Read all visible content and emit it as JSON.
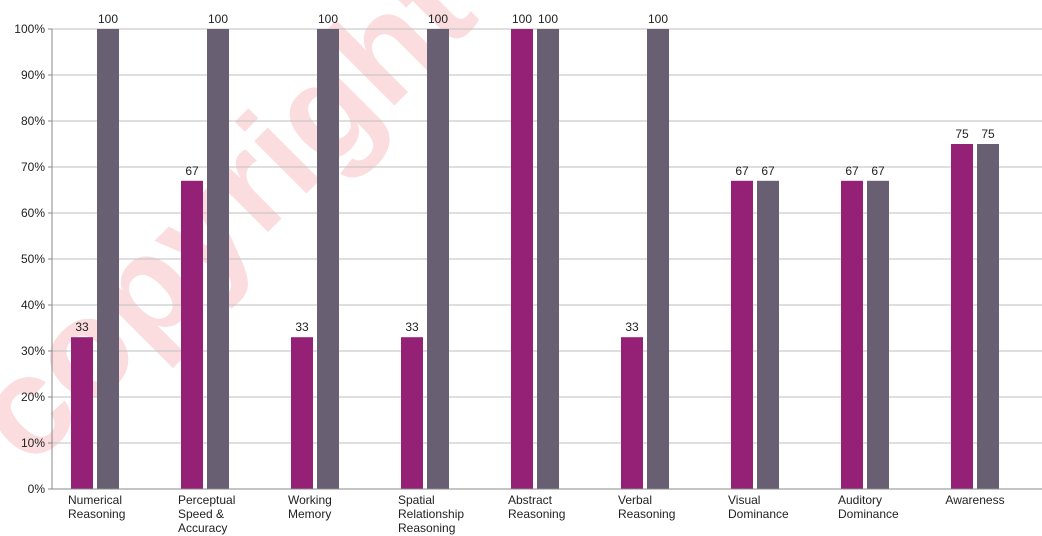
{
  "watermark": "copyright",
  "colors": {
    "series1": "#952177",
    "series2": "#686072",
    "grid": "#bfbfbf",
    "axis": "#888888"
  },
  "chart_data": {
    "type": "bar",
    "categories": [
      [
        "Numerical",
        "Reasoning"
      ],
      [
        "Perceptual",
        "Speed &",
        "Accuracy"
      ],
      [
        "Working",
        "Memory"
      ],
      [
        "Spatial",
        "Relationship",
        "Reasoning"
      ],
      [
        "Abstract",
        "Reasoning"
      ],
      [
        "Verbal",
        "Reasoning"
      ],
      [
        "Visual",
        "Dominance"
      ],
      [
        "Auditory",
        "Dominance"
      ],
      [
        "Awareness"
      ]
    ],
    "series": [
      {
        "values": [
          33,
          67,
          33,
          33,
          100,
          33,
          67,
          67,
          75
        ]
      },
      {
        "values": [
          100,
          100,
          100,
          100,
          100,
          100,
          67,
          67,
          75
        ]
      }
    ],
    "data_labels": [
      [
        "33",
        "67",
        "33",
        "33",
        "100",
        "33",
        "67",
        "67",
        "75"
      ],
      [
        "100",
        "100",
        "100",
        "100",
        "100",
        "100",
        "67",
        "67",
        "75"
      ]
    ],
    "ylim": [
      0,
      100
    ],
    "yticks": [
      "0%",
      "10%",
      "20%",
      "30%",
      "40%",
      "50%",
      "60%",
      "70%",
      "80%",
      "90%",
      "100%"
    ],
    "grid": true,
    "legend": "none"
  }
}
